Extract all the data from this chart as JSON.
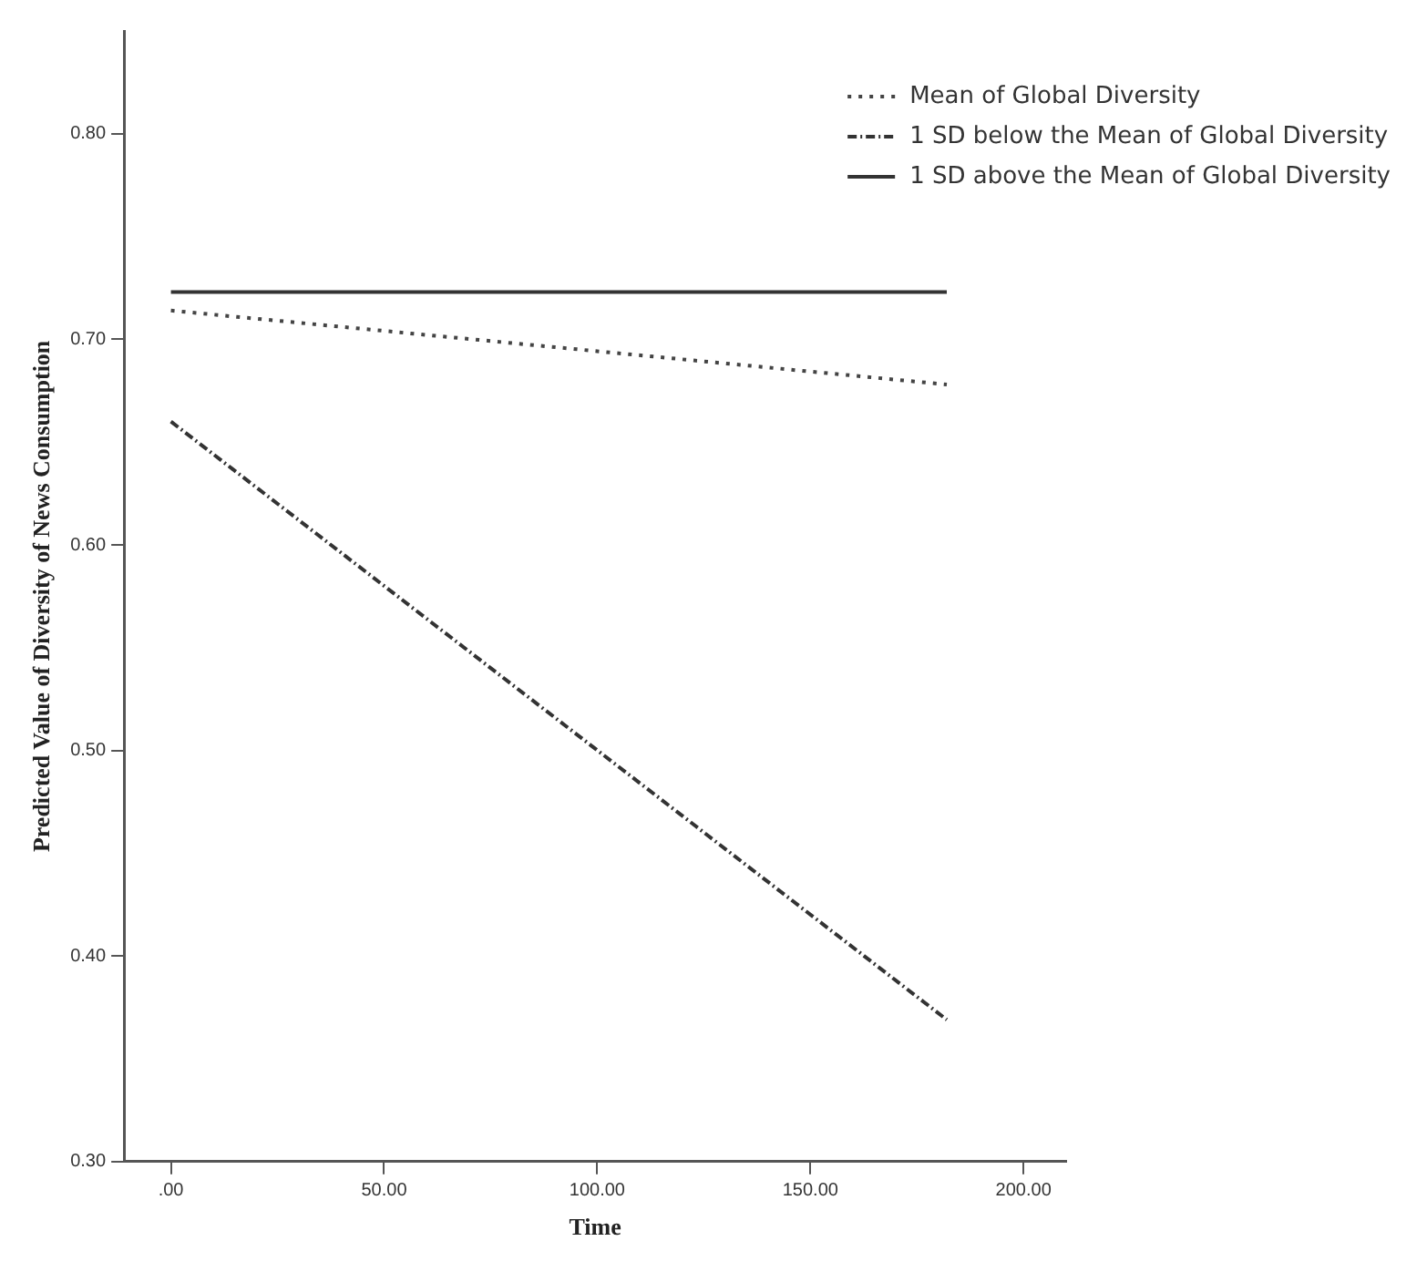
{
  "chart_data": {
    "type": "line",
    "xlabel": "Time",
    "ylabel": "Predicted Value of Diversity of News Consumption",
    "xlim": [
      -11,
      210
    ],
    "ylim": [
      0.3,
      0.85
    ],
    "xticks": [
      {
        "value": 0,
        "label": ".00"
      },
      {
        "value": 50,
        "label": "50.00"
      },
      {
        "value": 100,
        "label": "100.00"
      },
      {
        "value": 150,
        "label": "150.00"
      },
      {
        "value": 200,
        "label": "200.00"
      }
    ],
    "yticks": [
      {
        "value": 0.3,
        "label": "0.30"
      },
      {
        "value": 0.4,
        "label": "0.40"
      },
      {
        "value": 0.5,
        "label": "0.50"
      },
      {
        "value": 0.6,
        "label": "0.60"
      },
      {
        "value": 0.7,
        "label": "0.70"
      },
      {
        "value": 0.8,
        "label": "0.80"
      }
    ],
    "x": [
      0,
      182
    ],
    "series": [
      {
        "name": "Mean of Global Diversity",
        "color": "#444444",
        "line_style": "dotted",
        "values": [
          0.714,
          0.678
        ]
      },
      {
        "name": "1 SD below the Mean of Global Diversity",
        "color": "#333333",
        "line_style": "dashed",
        "values": [
          0.66,
          0.369
        ]
      },
      {
        "name": "1 SD above the Mean of Global Diversity",
        "color": "#333333",
        "line_style": "solid",
        "values": [
          0.723,
          0.723
        ]
      }
    ],
    "grid": false,
    "legend": "top right",
    "marker": "none"
  }
}
